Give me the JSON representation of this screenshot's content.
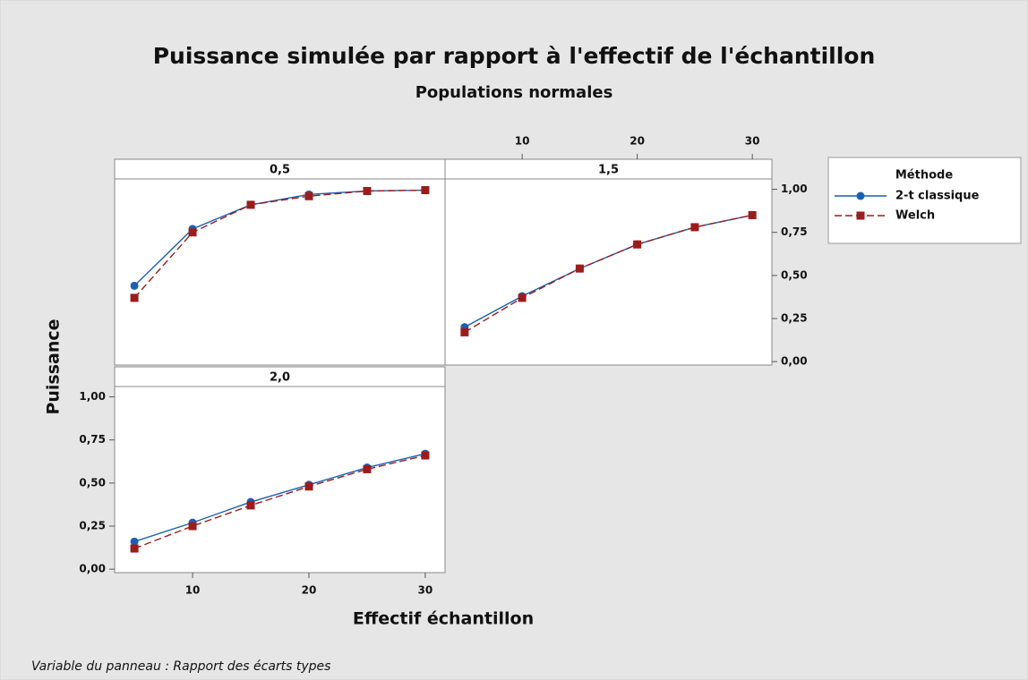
{
  "chart_data": {
    "type": "line",
    "title": "Puissance simulée par rapport à l'effectif de l'échantillon",
    "subtitle": "Populations normales",
    "x_label": "Effectif échantillon",
    "y_label": "Puissance",
    "legend_title": "Méthode",
    "footnote": "Variable du panneau : Rapport des écarts types",
    "x": [
      5,
      10,
      15,
      20,
      25,
      30
    ],
    "xlim": [
      3.3,
      31.7
    ],
    "ylim": [
      -0.02,
      1.06
    ],
    "xticks": [
      10,
      20,
      30
    ],
    "yticks": [
      {
        "value": 0,
        "label": "0,00"
      },
      {
        "value": 0.25,
        "label": "0,25"
      },
      {
        "value": 0.5,
        "label": "0,50"
      },
      {
        "value": 0.75,
        "label": "0,75"
      },
      {
        "value": 1,
        "label": "1,00"
      }
    ],
    "panels": [
      {
        "label": "0,5",
        "series": [
          {
            "name": "2-t classique",
            "color": "#1a5fb4",
            "marker": "circle",
            "line_style": "solid",
            "values": [
              0.44,
              0.77,
              0.91,
              0.97,
              0.99,
              0.995
            ]
          },
          {
            "name": "Welch",
            "color": "#9c1c1c",
            "marker": "square",
            "line_style": "dashed",
            "values": [
              0.37,
              0.75,
              0.91,
              0.96,
              0.99,
              0.995
            ]
          }
        ]
      },
      {
        "label": "1,5",
        "xaxis": "top",
        "yaxis": "right",
        "series": [
          {
            "name": "2-t classique",
            "color": "#1a5fb4",
            "marker": "circle",
            "line_style": "solid",
            "values": [
              0.2,
              0.38,
              0.54,
              0.68,
              0.78,
              0.85
            ]
          },
          {
            "name": "Welch",
            "color": "#9c1c1c",
            "marker": "square",
            "line_style": "dashed",
            "values": [
              0.17,
              0.37,
              0.54,
              0.68,
              0.78,
              0.85
            ]
          }
        ]
      },
      {
        "label": "2,0",
        "xaxis": "bottom",
        "yaxis": "left",
        "series": [
          {
            "name": "2-t classique",
            "color": "#1a5fb4",
            "marker": "circle",
            "line_style": "solid",
            "values": [
              0.16,
              0.27,
              0.39,
              0.49,
              0.59,
              0.67
            ]
          },
          {
            "name": "Welch",
            "color": "#9c1c1c",
            "marker": "square",
            "line_style": "dashed",
            "values": [
              0.12,
              0.25,
              0.37,
              0.48,
              0.58,
              0.66
            ]
          }
        ]
      }
    ]
  }
}
